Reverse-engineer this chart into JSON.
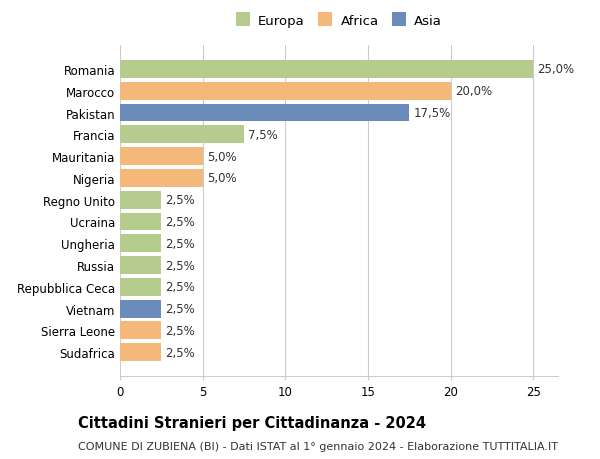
{
  "countries": [
    "Romania",
    "Marocco",
    "Pakistan",
    "Francia",
    "Mauritania",
    "Nigeria",
    "Regno Unito",
    "Ucraina",
    "Ungheria",
    "Russia",
    "Repubblica Ceca",
    "Vietnam",
    "Sierra Leone",
    "Sudafrica"
  ],
  "values": [
    25.0,
    20.0,
    17.5,
    7.5,
    5.0,
    5.0,
    2.5,
    2.5,
    2.5,
    2.5,
    2.5,
    2.5,
    2.5,
    2.5
  ],
  "labels": [
    "25,0%",
    "20,0%",
    "17,5%",
    "7,5%",
    "5,0%",
    "5,0%",
    "2,5%",
    "2,5%",
    "2,5%",
    "2,5%",
    "2,5%",
    "2,5%",
    "2,5%",
    "2,5%"
  ],
  "continent": [
    "Europa",
    "Africa",
    "Asia",
    "Europa",
    "Africa",
    "Africa",
    "Europa",
    "Europa",
    "Europa",
    "Europa",
    "Europa",
    "Asia",
    "Africa",
    "Africa"
  ],
  "colors": {
    "Europa": "#b5cc8e",
    "Africa": "#f4b87a",
    "Asia": "#6b8cba"
  },
  "legend_order": [
    "Europa",
    "Africa",
    "Asia"
  ],
  "title": "Cittadini Stranieri per Cittadinanza - 2024",
  "subtitle": "COMUNE DI ZUBIENA (BI) - Dati ISTAT al 1° gennaio 2024 - Elaborazione TUTTITALIA.IT",
  "xlim": [
    0,
    26.5
  ],
  "xticks": [
    0,
    5,
    10,
    15,
    20,
    25
  ],
  "background_color": "#ffffff",
  "grid_color": "#cccccc",
  "bar_height": 0.82,
  "label_fontsize": 8.5,
  "title_fontsize": 10.5,
  "subtitle_fontsize": 8.0,
  "tick_fontsize": 8.5,
  "legend_fontsize": 9.5
}
